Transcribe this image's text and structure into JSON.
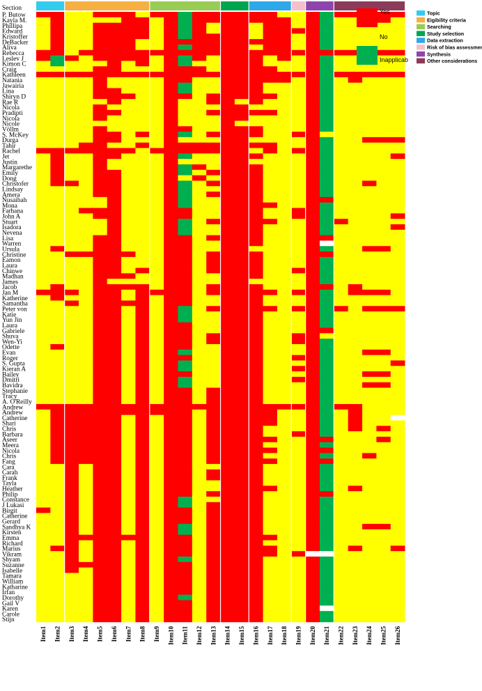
{
  "chart_data": {
    "type": "heatmap",
    "corner_label": "Section",
    "sections": [
      {
        "name": "Topic",
        "color": "#33CCEE",
        "items": [
          "Item1",
          "Item2"
        ]
      },
      {
        "name": "Eigibility criteria",
        "color": "#F5B041",
        "items": [
          "Item3",
          "Item4",
          "Item5",
          "Item6",
          "Item7",
          "Item8"
        ]
      },
      {
        "name": "Searching",
        "color": "#99CC55",
        "items": [
          "Item9",
          "Item10",
          "Item11",
          "Item12",
          "Item13"
        ]
      },
      {
        "name": "Study selection",
        "color": "#00A550",
        "items": [
          "Item14",
          "Item15"
        ]
      },
      {
        "name": "Data extraction",
        "color": "#2EA8E8",
        "items": [
          "Item16",
          "Item17",
          "Item18"
        ]
      },
      {
        "name": "Risk of bias assessment",
        "color": "#F5C0CC",
        "items": [
          "Item19"
        ]
      },
      {
        "name": "Synthesis",
        "color": "#8E44AD",
        "items": [
          "Item20",
          "Item21"
        ]
      },
      {
        "name": "Other considerations",
        "color": "#8B3A5A",
        "items": [
          "Item22",
          "Item23",
          "Item24",
          "Item25",
          "Item26"
        ]
      }
    ],
    "items": [
      "Item1",
      "Item2",
      "Item3",
      "Item4",
      "Item5",
      "Item6",
      "Item7",
      "Item8",
      "Item9",
      "Item10",
      "Item11",
      "Item12",
      "Item13",
      "Item14",
      "Item15",
      "Item16",
      "Item17",
      "Item18",
      "Item19",
      "Item20",
      "Item21",
      "Item22",
      "Item23",
      "Item24",
      "Item25",
      "Item26"
    ],
    "value_legend": [
      {
        "label": "Yes",
        "color": "#FF0000"
      },
      {
        "label": "No",
        "color": "#FFFF00"
      },
      {
        "label": "Inapplicab",
        "color": "#00B050"
      }
    ],
    "value_codes": {
      "Y": "Yes",
      "N": "No",
      "I": "Inapplicab",
      "B": "blank"
    },
    "rows": [
      {
        "name": "P. Butow",
        "cells": "YYNNYYYNYYIYYYYYYNNYIYYYYY"
      },
      {
        "name": "Kayla M.",
        "cells": "NYNNNNYYNYIYYYYYYYNYINNNYN"
      },
      {
        "name": "Phillipa",
        "cells": "NYNNYYYYNYIYNYYNYYNYINNNNN"
      },
      {
        "name": "Edward",
        "cells": "NYNNYYYYNYIYNYYNYYYYINNNNN"
      },
      {
        "name": "Kristoffer",
        "cells": "NYNNYYYYNYIYYYYNYYNYINNNNN"
      },
      {
        "name": "DeBacker",
        "cells": "NYNNYYYNNYYYYYYYYYNYINNNNN"
      },
      {
        "name": "Aliva",
        "cells": "NYNNYYYNNYIYYYYNYYNYINNNNN"
      },
      {
        "name": "Rebecca",
        "cells": "YYNYYYYYYYYYYYYYYYYYYYYYYY"
      },
      {
        "name": "Leslev J",
        "cells": "YIYNYYYYNYIYNYYYNYNYINNNNN"
      },
      {
        "name": "Kimon C",
        "cells": "NINNNYNYNYINNYYYNNNYINNNNN"
      },
      {
        "name": "Craig",
        "cells": "NNNNYYNNNYYYNYYYYNNYINNNNN"
      },
      {
        "name": "Kathleen",
        "cells": "YYYYYYYYYYYYYYYYYYYYIYYYYY"
      },
      {
        "name": "Natania",
        "cells": "NNNNYNNNNYYNNYYYYYNYINYNNN"
      },
      {
        "name": "Jawairia",
        "cells": "NNNNYNNNNYINNYYYNNNYINNNNN"
      },
      {
        "name": "Lina",
        "cells": "NNNNYYNNNYINNYYYNNNYINNNNN"
      },
      {
        "name": "Shiryn D",
        "cells": "NNNNYYYNNYYNYYYYYNNYINNNNN"
      },
      {
        "name": "Rae R",
        "cells": "NNNNNYNNNYNNYYNYNNNYINNNNN"
      },
      {
        "name": "Nicola",
        "cells": "NNNNYNNNNYNNNYYNNNNYINNNNN"
      },
      {
        "name": "Pradipti",
        "cells": "NNNNYYNNNYNNYYYYYNNYINNNNN"
      },
      {
        "name": "Nicola",
        "cells": "NNNNYNNNNYNNNYYNNNNYINNNNN"
      },
      {
        "name": "Nicole",
        "cells": "NNNNNNNNNYNNNYNNNNNYINNNNN"
      },
      {
        "name": "Völlm",
        "cells": "NNNNYNNNNYYNNYYYNNNYINNNNN"
      },
      {
        "name": "S. McKey",
        "cells": "NNNNYYNYNYINYYYYNNYYNNNNNN"
      },
      {
        "name": "Durga",
        "cells": "NNNNYYNNNYNNNYYNNNNYINNYYY"
      },
      {
        "name": "Tahir",
        "cells": "NNNYYNNYNYYYYYYYYNNYINNNNN"
      },
      {
        "name": "Rachel",
        "cells": "YYYYYYYNYYYYYYYNYNYYINNNNN"
      },
      {
        "name": "Jet",
        "cells": "NYNNYYNNNYINNYYYNNNYINNNNY"
      },
      {
        "name": "Justin",
        "cells": "NYNNYNNNNYNNNYYNNNNYINNNNN"
      },
      {
        "name": "Margarethe",
        "cells": "NYNNYNNNNYIYNYYYNNNYINNNNN"
      },
      {
        "name": "Emily",
        "cells": "NYNNYYNNNYINYYYYNNNYINNNNN"
      },
      {
        "name": "Dong",
        "cells": "NYNNYYNNNYNYNYYYNNNYINNNNN"
      },
      {
        "name": "Christofer",
        "cells": "NYYNYYNNNYINYYYYNNNYINNYNN"
      },
      {
        "name": "Lindsay",
        "cells": "NNNNYYNNNYINNYYYNNNYINNNNN"
      },
      {
        "name": "Amera",
        "cells": "NNNNYYNNNYINYYYYNNNYINNNNN"
      },
      {
        "name": "Nusaibah",
        "cells": "NNNNNYNNNYINNYYYNNNYYNNNNN"
      },
      {
        "name": "Mona",
        "cells": "NNNNNYNNNYINNYYYYNNYINNNNN"
      },
      {
        "name": "Farhana",
        "cells": "NNNYYYNNNYYNNYYYNNYYINNNNN"
      },
      {
        "name": "John A",
        "cells": "NNNNYYNNNYYNNYYYNNYYINNNNY"
      },
      {
        "name": "Stuart",
        "cells": "NNNNNYNNNYINYYYYYNNYIYNNNN"
      },
      {
        "name": "Isadora",
        "cells": "NNNNNYNNNYINNYYYNNNYINNNNY"
      },
      {
        "name": "Nevena",
        "cells": "NNNNNYNNNYINNYYYNNNYINNNNN"
      },
      {
        "name": "Lisa",
        "cells": "NNNNYYNNNYYNYYYYNNNYYNNNNN"
      },
      {
        "name": "Warren",
        "cells": "NNNNYYNNNYYNNYYYNNNYBNNNNN"
      },
      {
        "name": "Ursula",
        "cells": "NYNNYYNNNYYNNYYNNNNYINNYYN"
      },
      {
        "name": "Christine",
        "cells": "NNYYYYYNNYYNYYYYNNNYYNNNNN"
      },
      {
        "name": "Eamon",
        "cells": "NNNNYYNNNYYNYYYYNNNYINNNNN"
      },
      {
        "name": "Laura",
        "cells": "NNNNYYNNNYYNYYYYNNNYINNNNN"
      },
      {
        "name": "Chinwe",
        "cells": "NNNNYYNYNYYNYYYYNNYYINNNNN"
      },
      {
        "name": "Madhan",
        "cells": "NNNNYYYNNYYNNYYYNNNYINNNNN"
      },
      {
        "name": "James",
        "cells": "NNNNYNNNNYYNNYYNNNNYINNNNN"
      },
      {
        "name": "Jacob",
        "cells": "NYNNYYYYNYYNYYYYNNNYYNYNNN"
      },
      {
        "name": "Jan M",
        "cells": "YYYNYYNYYYYNYYYYYNYYINYYYN"
      },
      {
        "name": "Katherine",
        "cells": "NYNNYYNYNYYNNYYYNNNYINNNNN"
      },
      {
        "name": "Samantha",
        "cells": "NNYNYYYYNYYNNYYYNNNYINNNNN"
      },
      {
        "name": "Peter von",
        "cells": "NNNNYYNYNYINYYYYYNYYIYNYYY"
      },
      {
        "name": "Katie",
        "cells": "NNNNYYNYNYINNYYYNNNYINNNNN"
      },
      {
        "name": "Yun Jin",
        "cells": "NNNNYYNYNYINNYYYNNNYINNNNN"
      },
      {
        "name": "Laura",
        "cells": "NNNNYYNYNYYNNYYYNNNYINNNNN"
      },
      {
        "name": "Gabriele",
        "cells": "NNNNYYNYNYYNNYYYNNNYYNNNNN"
      },
      {
        "name": "Shuva",
        "cells": "NNNNYYNYNYYNYYYYNNYYNNNNNN"
      },
      {
        "name": "Wen-Yi",
        "cells": "NNNNYYNYNYYNYYYYNNYYINNNNN"
      },
      {
        "name": "Odette",
        "cells": "NYNNYYNYNYYNNYYYNNNYINNNNN"
      },
      {
        "name": "Evan",
        "cells": "NNNNYYNYNYINNYYYNNNYINNYYN"
      },
      {
        "name": "Roger",
        "cells": "NNNNYYNYNYYNNYYYNNYYINNNNN"
      },
      {
        "name": "S. Gupta",
        "cells": "NNNNYYNYNYINNYYYNNNYINNNNY"
      },
      {
        "name": "Kieran A",
        "cells": "NNNNYYNYNYINNYYYNNYYINNNNN"
      },
      {
        "name": "Bailey",
        "cells": "NNNNYYNYNYYNNYYYNNNYINNYYN"
      },
      {
        "name": "Dmitri",
        "cells": "NNNNYYNYNYINNYYYNNYYINNNNN"
      },
      {
        "name": "Bavidra",
        "cells": "NNNNYYNYNYINNYYYNNNYINNYYN"
      },
      {
        "name": "Stephanie",
        "cells": "NNNNYYNYNYYNYYYYNNNYINNNNN"
      },
      {
        "name": "Tracy",
        "cells": "NNNNYYNYNYYNYYYYNNNYINNNNN"
      },
      {
        "name": "A. O'Reilly",
        "cells": "NNNNYYNYNYYNYYYYNNNYINNNNN"
      },
      {
        "name": "Andrew",
        "cells": "YYYYYYYYYYYYYYYYYYYYIYYNNN"
      },
      {
        "name": "Andrew",
        "cells": "NYYYYYYYYYYNYYYYYNNYINYNNN"
      },
      {
        "name": "Catherine",
        "cells": "NYYYYYNYNYYNYYYYYNNYINYNNB"
      },
      {
        "name": "Shari",
        "cells": "NYYYYYNYNYYNYYYYYNNYINYNNN"
      },
      {
        "name": "Chris",
        "cells": "NYYYYYNYNYYNYYYYNNNYINYNYN"
      },
      {
        "name": "Barbara",
        "cells": "NYYYYYNYNYYNYYYYNNYYINNNNN"
      },
      {
        "name": "Aseer",
        "cells": "NYYYYYNYNYYNYYYYYNNYYNNNYN"
      },
      {
        "name": "Meera",
        "cells": "NYYYYYNYNYYNYYYYNNNYINNNNN"
      },
      {
        "name": "Nicola",
        "cells": "NYYYYYNYNYYNYYYYYNNYYNNNNN"
      },
      {
        "name": "Chris",
        "cells": "NYYYYYNYNYYNYYYYNNNYINNYNN"
      },
      {
        "name": "Fang",
        "cells": "NYYYYYNYNYYNYYYYYNNYYNNNNN"
      },
      {
        "name": "Cara",
        "cells": "NNYNYYNYNYYNNYYYNNNYINNNNN"
      },
      {
        "name": "Carah",
        "cells": "NNYNYYNYNYYNYYYYNNNYINNNNN"
      },
      {
        "name": "Frank",
        "cells": "NNYNYYNYNYYNYYYYNNNYINNNNN"
      },
      {
        "name": "Tayla",
        "cells": "NNYNYYNYNYYNNYYYNNNYINNNNN"
      },
      {
        "name": "Heather",
        "cells": "NNYNYYNYNYYNNYYYYNNYINYNNN"
      },
      {
        "name": "Philip",
        "cells": "NNYNYYNYNYYNYYYYNNNYYNNNNN"
      },
      {
        "name": "Constance",
        "cells": "NNYNYYNYNYINNYYYNNNYINNNNN"
      },
      {
        "name": "J Lukasi",
        "cells": "NNYNYYNYNYINYYYYNNNYINNNNN"
      },
      {
        "name": "Birgit",
        "cells": "YNYNYYNYNYYNYYYYNNNYINNNNN"
      },
      {
        "name": "Catherine",
        "cells": "NNYNYYNYNYYNYYYYNNNYINNNNN"
      },
      {
        "name": "Gerard",
        "cells": "NNYNYYNYNYYNYYYYNNNYINNNNN"
      },
      {
        "name": "Sandhya K",
        "cells": "NNYNYYNYNYINYYYYNNNYINNYYN"
      },
      {
        "name": "Kirsten",
        "cells": "NNYNYYNYNYINYYYYNNNYINNNNN"
      },
      {
        "name": "Emma",
        "cells": "NNYYYYYYNYYNYYYYYNNYINNNNN"
      },
      {
        "name": "Richard",
        "cells": "NNYNYYNYNYYNYYYYNNNYINNNNN"
      },
      {
        "name": "Marius",
        "cells": "NYYNYYNYNYYNYYYYYNNYINYNNY"
      },
      {
        "name": "Vikram",
        "cells": "NNYNYYNYNYYNYYYYYNYBBNNNNN"
      },
      {
        "name": "Shyam",
        "cells": "NNYNYYNYNYINYYYYNNNYINNNNN"
      },
      {
        "name": "Suzanne",
        "cells": "NNYYYYNYNYYNYYYYNNNYINNNNN"
      },
      {
        "name": "Isabelle",
        "cells": "NNYNYYNYNYYNYYYYNNNYINNNNN"
      },
      {
        "name": "Tamara",
        "cells": "NNNNYYNYNYYNYYYYNNNYINNNNN"
      },
      {
        "name": "William",
        "cells": "NNNNYYNYNYYNYYYYNNNYINNNNN"
      },
      {
        "name": "Katharine",
        "cells": "NNNNYYNYNYYNYYYYNNNYINNNNN"
      },
      {
        "name": "Irfan",
        "cells": "NNNNYYNYNYYNYYYYNNNYINNNNN"
      },
      {
        "name": "Dorothy",
        "cells": "NNNNYYNYNYINYYYYNNNYINNNNN"
      },
      {
        "name": "Gail V",
        "cells": "NNNNYYNYNYYNYYYYNNNYINNNNN"
      },
      {
        "name": "Karen",
        "cells": "NNNNYYNYNYYNYYYYNNNYBNNNNN"
      },
      {
        "name": "Carole",
        "cells": "NNNNYYNYNYYNYYYYNNNYINNNNN"
      },
      {
        "name": "Stijn",
        "cells": "NNNNYYNYNYYNYYYYNNNYINNNNN"
      }
    ]
  }
}
